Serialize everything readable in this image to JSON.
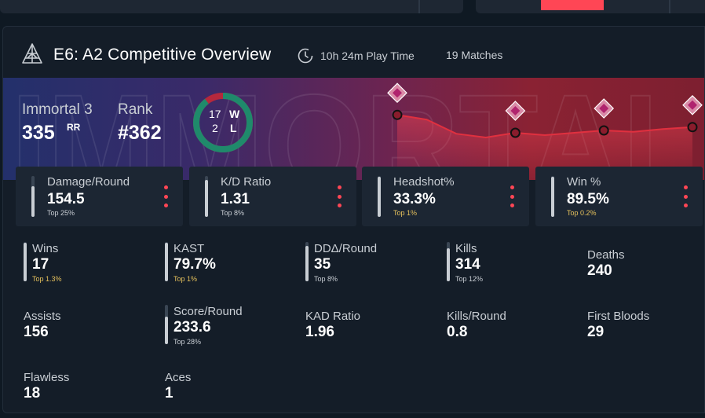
{
  "overview": {
    "title": "E6: A2 Competitive Overview",
    "playtime": "10h 24m Play Time",
    "matches": "19 Matches"
  },
  "rank": {
    "tier": "Immortal 3",
    "rr": "335",
    "rr_unit": "RR",
    "rank_label": "Rank",
    "rank_value": "#362",
    "watermark": "IMMORTAL"
  },
  "record": {
    "wins": "17",
    "losses": "2",
    "w_label": "W",
    "l_label": "L",
    "win_fraction": 0.895
  },
  "colors": {
    "accent": "#ff4655",
    "win": "#1f8a6b",
    "loss": "#b5283c",
    "gold": "#e6c15c"
  },
  "rr_chart": {
    "type": "line",
    "points": [
      0.12,
      0.22,
      0.52,
      0.6,
      0.5,
      0.55,
      0.5,
      0.45,
      0.48,
      0.42,
      0.38
    ]
  },
  "highlight_cards": [
    {
      "label": "Damage/Round",
      "value": "154.5",
      "top": "Top 25%",
      "fill": 0.75,
      "gold": false
    },
    {
      "label": "K/D Ratio",
      "value": "1.31",
      "top": "Top 8%",
      "fill": 0.9,
      "gold": false
    },
    {
      "label": "Headshot%",
      "value": "33.3%",
      "top": "Top 1%",
      "fill": 0.98,
      "gold": true
    },
    {
      "label": "Win %",
      "value": "89.5%",
      "top": "Top 0.2%",
      "fill": 0.99,
      "gold": true
    }
  ],
  "stats": [
    {
      "label": "Wins",
      "value": "17",
      "top": "Top 1.3%",
      "gold": true,
      "fill": 0.98
    },
    {
      "label": "KAST",
      "value": "79.7%",
      "top": "Top 1%",
      "gold": true,
      "fill": 0.99
    },
    {
      "label": "DDΔ/Round",
      "value": "35",
      "top": "Top 8%",
      "gold": false,
      "fill": 0.9
    },
    {
      "label": "Kills",
      "value": "314",
      "top": "Top 12%",
      "gold": false,
      "fill": 0.85
    },
    {
      "label": "Deaths",
      "value": "240"
    },
    {
      "label": "Assists",
      "value": "156"
    },
    {
      "label": "Score/Round",
      "value": "233.6",
      "top": "Top 28%",
      "gold": false,
      "fill": 0.7
    },
    {
      "label": "KAD Ratio",
      "value": "1.96"
    },
    {
      "label": "Kills/Round",
      "value": "0.8"
    },
    {
      "label": "First Bloods",
      "value": "29"
    },
    {
      "label": "Flawless",
      "value": "18"
    },
    {
      "label": "Aces",
      "value": "1"
    }
  ]
}
